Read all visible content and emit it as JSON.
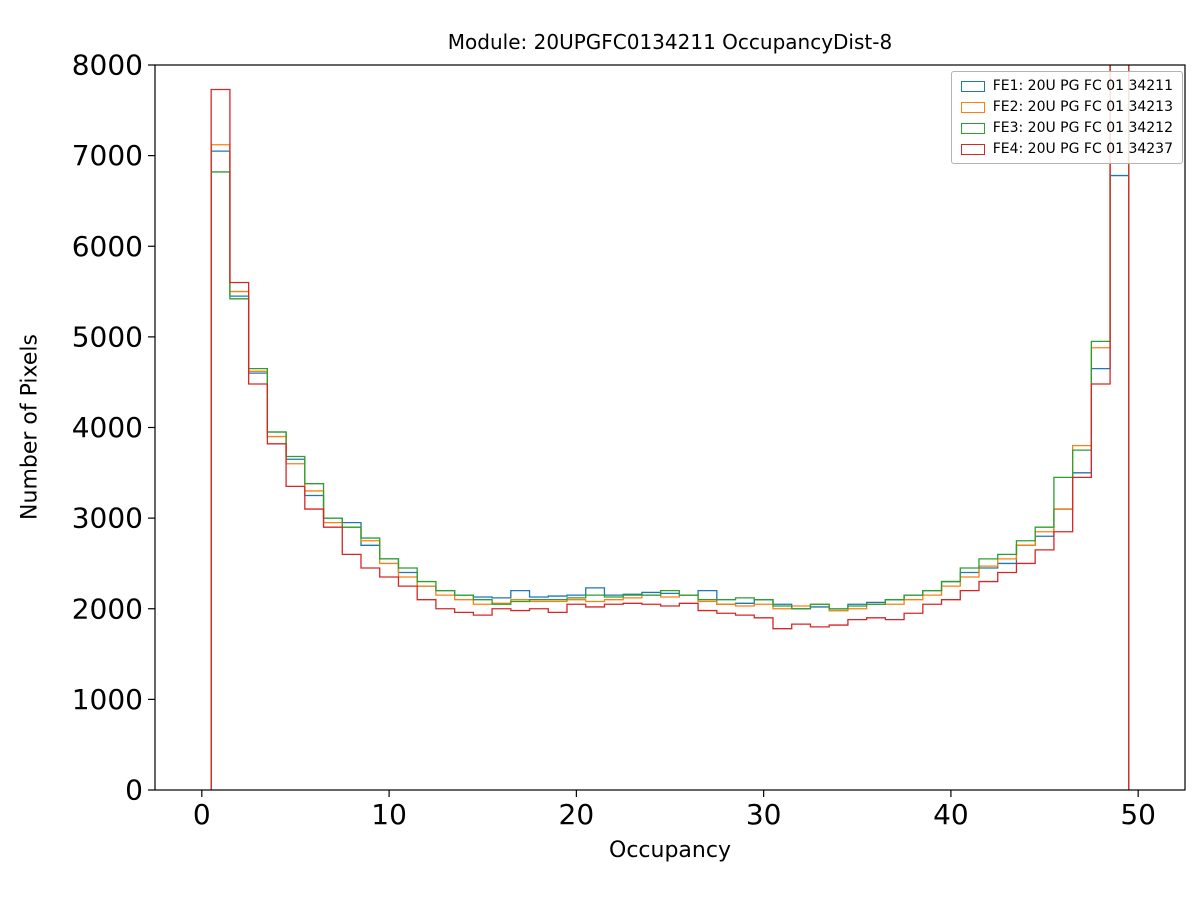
{
  "chart_data": {
    "type": "step-histogram",
    "title": "Module: 20UPGFC0134211 OccupancyDist-8",
    "xlabel": "Occupancy",
    "ylabel": "Number of Pixels",
    "xlim": [
      -2.5,
      52.5
    ],
    "ylim": [
      0,
      8000
    ],
    "xticks": [
      0,
      10,
      20,
      30,
      40,
      50
    ],
    "yticks": [
      0,
      1000,
      2000,
      3000,
      4000,
      5000,
      6000,
      7000,
      8000
    ],
    "grid": false,
    "legend_position": "upper right",
    "bin_edges_start": 0.5,
    "bin_width": 1,
    "series": [
      {
        "name": "FE1: 20U PG FC 01 34211",
        "color": "#1f77b4",
        "values": [
          7050,
          5450,
          4600,
          3950,
          3650,
          3250,
          3000,
          2950,
          2700,
          2550,
          2400,
          2250,
          2200,
          2150,
          2130,
          2120,
          2200,
          2130,
          2140,
          2150,
          2230,
          2150,
          2160,
          2180,
          2170,
          2150,
          2200,
          2050,
          2060,
          2100,
          2050,
          2000,
          2020,
          1980,
          2050,
          2070,
          2100,
          2150,
          2200,
          2300,
          2400,
          2450,
          2500,
          2700,
          2800,
          3100,
          3500,
          4650,
          6780
        ]
      },
      {
        "name": "FE2: 20U PG FC 01 34213",
        "color": "#ff7f0e",
        "values": [
          7120,
          5500,
          4620,
          3900,
          3600,
          3300,
          2950,
          2900,
          2750,
          2500,
          2350,
          2250,
          2150,
          2100,
          2050,
          2060,
          2100,
          2080,
          2080,
          2100,
          2080,
          2100,
          2120,
          2150,
          2130,
          2150,
          2080,
          2050,
          2030,
          2050,
          2000,
          2030,
          2050,
          1980,
          2000,
          2050,
          2050,
          2100,
          2150,
          2250,
          2350,
          2470,
          2550,
          2700,
          2850,
          3100,
          3800,
          4880,
          9000
        ]
      },
      {
        "name": "FE3: 20U PG FC 01 34212",
        "color": "#2ca02c",
        "values": [
          6820,
          5420,
          4650,
          3950,
          3680,
          3380,
          3000,
          2900,
          2780,
          2550,
          2450,
          2300,
          2200,
          2150,
          2100,
          2050,
          2080,
          2100,
          2100,
          2120,
          2150,
          2130,
          2150,
          2150,
          2200,
          2150,
          2100,
          2100,
          2120,
          2100,
          2030,
          2000,
          2050,
          2000,
          2030,
          2050,
          2100,
          2150,
          2200,
          2300,
          2450,
          2550,
          2600,
          2750,
          2900,
          3450,
          3750,
          4950,
          9000
        ]
      },
      {
        "name": "FE4: 20U PG FC 01 34237",
        "color": "#d62728",
        "values": [
          7730,
          5600,
          4480,
          3820,
          3350,
          3100,
          2900,
          2600,
          2450,
          2350,
          2250,
          2100,
          2000,
          1960,
          1930,
          2000,
          1980,
          2000,
          1960,
          2050,
          2020,
          2050,
          2060,
          2050,
          2030,
          2060,
          1980,
          1950,
          1930,
          1900,
          1780,
          1830,
          1800,
          1820,
          1880,
          1900,
          1880,
          1950,
          2050,
          2100,
          2200,
          2300,
          2400,
          2500,
          2650,
          2850,
          3450,
          4480,
          9000
        ]
      }
    ]
  }
}
